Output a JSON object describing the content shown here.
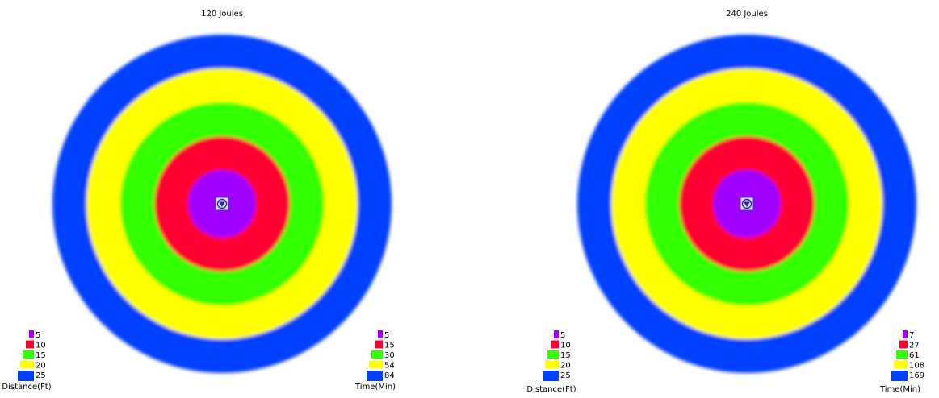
{
  "chart_data": [
    {
      "type": "radial-zones",
      "title": "120 Joules",
      "rings": [
        {
          "distance_ft": 5,
          "time_min": 5,
          "color": "#a000ff"
        },
        {
          "distance_ft": 10,
          "time_min": 15,
          "color": "#ff0033"
        },
        {
          "distance_ft": 15,
          "time_min": 30,
          "color": "#33ff00"
        },
        {
          "distance_ft": 20,
          "time_min": 54,
          "color": "#ffff00"
        },
        {
          "distance_ft": 25,
          "time_min": 84,
          "color": "#0040ff"
        }
      ],
      "distance_legend_title": "Distance(Ft)",
      "time_legend_title": "Time(Min)"
    },
    {
      "type": "radial-zones",
      "title": "240 Joules",
      "rings": [
        {
          "distance_ft": 5,
          "time_min": 7,
          "color": "#a000ff"
        },
        {
          "distance_ft": 10,
          "time_min": 27,
          "color": "#ff0033"
        },
        {
          "distance_ft": 15,
          "time_min": 61,
          "color": "#33ff00"
        },
        {
          "distance_ft": 20,
          "time_min": 108,
          "color": "#ffff00"
        },
        {
          "distance_ft": 25,
          "time_min": 169,
          "color": "#0040ff"
        }
      ],
      "distance_legend_title": "Distance(Ft)",
      "time_legend_title": "Time(Min)"
    }
  ]
}
